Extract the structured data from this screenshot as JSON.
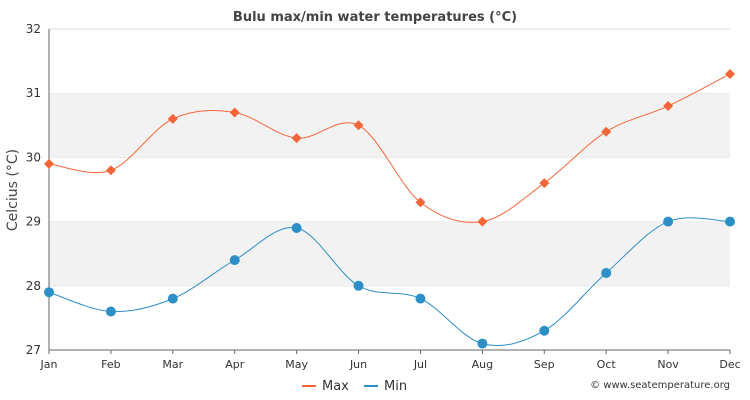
{
  "chart_data": {
    "type": "line",
    "title": "Bulu max/min water temperatures (°C)",
    "xlabel": "",
    "ylabel": "Celcius (°C)",
    "categories": [
      "Jan",
      "Feb",
      "Mar",
      "Apr",
      "May",
      "Jun",
      "Jul",
      "Aug",
      "Sep",
      "Oct",
      "Nov",
      "Dec"
    ],
    "ylim": [
      27,
      32
    ],
    "yticks": [
      27,
      28,
      29,
      30,
      31,
      32
    ],
    "grid": "horizontal-bands",
    "legend_position": "bottom-center",
    "series": [
      {
        "name": "Max",
        "color": "#f4663a",
        "marker": "diamond",
        "values": [
          29.9,
          29.8,
          30.6,
          30.7,
          30.3,
          30.5,
          29.3,
          29.0,
          29.6,
          30.4,
          30.8,
          31.3
        ]
      },
      {
        "name": "Min",
        "color": "#2e8fc7",
        "marker": "circle",
        "values": [
          27.9,
          27.6,
          27.8,
          28.4,
          28.9,
          28.0,
          27.8,
          27.1,
          27.3,
          28.2,
          29.0,
          29.0
        ]
      }
    ],
    "credit": "© www.seatemperature.org"
  },
  "colors": {
    "band": "#f2f2f2",
    "axis": "#666666",
    "grid": "#dddddd"
  }
}
